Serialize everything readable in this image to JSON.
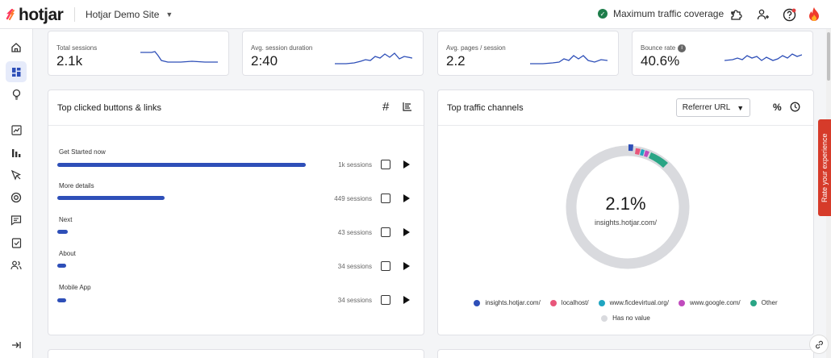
{
  "brand": {
    "logo_mark": "⁄",
    "logo_text": "hotjar",
    "accent": "#fd3a5c"
  },
  "header": {
    "site_name": "Hotjar Demo Site",
    "coverage_label": "Maximum traffic coverage",
    "icons": [
      "puzzle-icon",
      "add-user-icon",
      "help-icon",
      "flame-icon"
    ]
  },
  "sidebar": {
    "items": [
      "home-icon",
      "dashboard-icon",
      "lightbulb-icon",
      "trends-icon",
      "funnels-icon",
      "recordings-icon",
      "heatmaps-icon",
      "feedback-icon",
      "surveys-icon",
      "users-icon"
    ],
    "collapse_icon": "collapse-icon"
  },
  "metrics": [
    {
      "label": "Total sessions",
      "value": "2.1k"
    },
    {
      "label": "Avg. session duration",
      "value": "2:40"
    },
    {
      "label": "Avg. pages / session",
      "value": "2.2"
    },
    {
      "label": "Bounce rate",
      "value": "40.6%"
    }
  ],
  "clicked": {
    "title": "Top clicked buttons & links",
    "rows": [
      {
        "label": "Get Started now",
        "sessions": "1k sessions",
        "share": 1.0
      },
      {
        "label": "More details",
        "sessions": "449 sessions",
        "share": 0.43
      },
      {
        "label": "Next",
        "sessions": "43 sessions",
        "share": 0.042
      },
      {
        "label": "About",
        "sessions": "34 sessions",
        "share": 0.033
      },
      {
        "label": "Mobile App",
        "sessions": "34 sessions",
        "share": 0.033
      }
    ]
  },
  "traffic": {
    "title": "Top traffic channels",
    "dropdown_label": "Referrer URL",
    "percent_label": "%",
    "center_value": "2.1%",
    "center_label": "insights.hotjar.com/",
    "legend": [
      {
        "name": "insights.hotjar.com/",
        "color": "#2e4fb8"
      },
      {
        "name": "localhost/",
        "color": "#e8567a"
      },
      {
        "name": "www.ficdevirtual.org/",
        "color": "#1fa5c1"
      },
      {
        "name": "www.google.com/",
        "color": "#c04bbd"
      },
      {
        "name": "Other",
        "color": "#2aa585"
      }
    ],
    "legend_no_value": {
      "name": "Has no value",
      "color": "#d9dade"
    }
  },
  "rate_tab": "Rate your experience"
}
